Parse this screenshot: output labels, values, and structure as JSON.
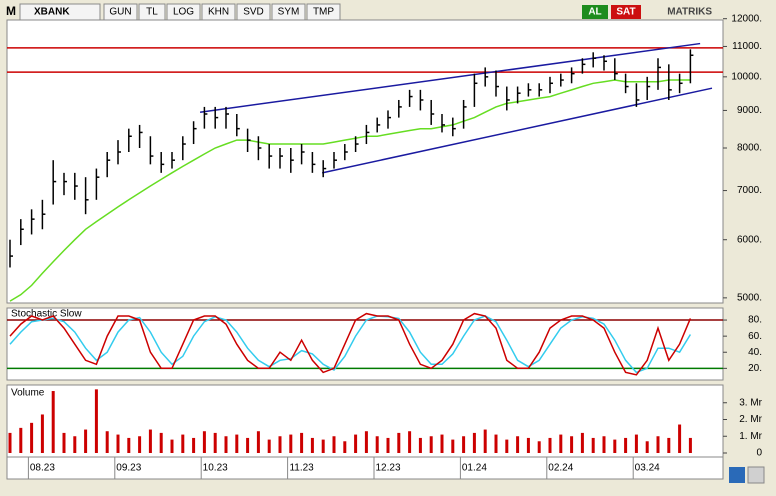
{
  "toolbar": {
    "logo": "M",
    "symbol": "XBANK",
    "buttons": [
      "GUN",
      "TL",
      "LOG",
      "KHN",
      "SVD",
      "SYM",
      "TMP"
    ],
    "buy": "AL",
    "sell": "SAT",
    "brand": "MATRIKS"
  },
  "chart_data": [
    {
      "type": "ohlc",
      "color": "#000000",
      "log_scale": true,
      "categories": [
        null,
        null,
        null,
        "08.23",
        null,
        null,
        null,
        null,
        null,
        null,
        null,
        "09.23",
        null,
        null,
        null,
        null,
        null,
        null,
        null,
        "10.23",
        null,
        null,
        null,
        null,
        null,
        null,
        null,
        "11.23",
        null,
        null,
        null,
        null,
        null,
        null,
        null,
        "12.23",
        null,
        null,
        null,
        null,
        null,
        null,
        null,
        "01.24",
        null,
        null,
        null,
        null,
        null,
        null,
        null,
        "02.24",
        null,
        null,
        null,
        null,
        null,
        null,
        null,
        "03.24",
        null,
        null,
        null,
        null
      ],
      "high": [
        6000,
        6400,
        6600,
        6800,
        7700,
        7400,
        7400,
        7300,
        7500,
        7900,
        8200,
        8500,
        8600,
        8300,
        7900,
        7900,
        8300,
        8700,
        9100,
        9100,
        9100,
        8900,
        8500,
        8300,
        8100,
        8000,
        8000,
        8100,
        7900,
        7700,
        7900,
        8100,
        8300,
        8600,
        8800,
        9000,
        9300,
        9600,
        9600,
        9300,
        8900,
        8800,
        9300,
        10100,
        10300,
        10200,
        9700,
        9700,
        9800,
        9800,
        10000,
        10100,
        10300,
        10600,
        10800,
        10700,
        10600,
        10100,
        9800,
        10000,
        10600,
        10400,
        10100,
        10900
      ],
      "low": [
        5500,
        5900,
        6100,
        6200,
        6700,
        6900,
        6800,
        6500,
        6800,
        7300,
        7600,
        7900,
        8000,
        7600,
        7400,
        7500,
        7700,
        8100,
        8500,
        8500,
        8500,
        8300,
        7900,
        7700,
        7500,
        7500,
        7400,
        7600,
        7400,
        7300,
        7500,
        7700,
        7900,
        8100,
        8400,
        8500,
        8800,
        9100,
        9000,
        8600,
        8400,
        8300,
        8500,
        9100,
        9700,
        9400,
        9000,
        9200,
        9400,
        9400,
        9500,
        9700,
        9800,
        10100,
        10300,
        10200,
        9900,
        9500,
        9100,
        9300,
        9600,
        9300,
        9500,
        9800
      ],
      "close": [
        5700,
        6200,
        6400,
        6500,
        7200,
        7200,
        7100,
        6800,
        7300,
        7700,
        7900,
        8300,
        8400,
        7800,
        7600,
        7700,
        8100,
        8500,
        8900,
        8800,
        8900,
        8500,
        8200,
        8000,
        7800,
        7800,
        7700,
        7900,
        7600,
        7500,
        7700,
        7900,
        8100,
        8400,
        8600,
        8800,
        9100,
        9400,
        9300,
        8900,
        8600,
        8500,
        9100,
        9800,
        10000,
        9700,
        9300,
        9500,
        9600,
        9600,
        9800,
        9900,
        10100,
        10400,
        10600,
        10500,
        10100,
        9700,
        9300,
        9700,
        10300,
        9600,
        9800,
        10700
      ],
      "moving_average": {
        "color": "#66dd22",
        "values": [
          4950,
          5050,
          5200,
          5400,
          5600,
          5800,
          6000,
          6200,
          6350,
          6500,
          6650,
          6800,
          6950,
          7100,
          7250,
          7400,
          7550,
          7700,
          7850,
          8000,
          8100,
          8200,
          8200,
          8150,
          8100,
          8100,
          8100,
          8100,
          8100,
          8100,
          8150,
          8200,
          8250,
          8300,
          8300,
          8350,
          8400,
          8450,
          8500,
          8500,
          8550,
          8600,
          8700,
          8800,
          8950,
          9100,
          9200,
          9250,
          9300,
          9350,
          9400,
          9500,
          9600,
          9700,
          9800,
          9850,
          9900,
          9850,
          9850,
          9850,
          9850,
          9900,
          9900,
          9900
        ]
      },
      "trendlines": [
        {
          "color": "#1a1aa0",
          "from": [
            17.6,
            8950
          ],
          "to": [
            63.9,
            11100
          ]
        },
        {
          "color": "#1a1aa0",
          "from": [
            28.9,
            7400
          ],
          "to": [
            65,
            9650
          ]
        }
      ],
      "hlines": [
        {
          "value": 10950,
          "color": "#cc0000"
        },
        {
          "value": 10150,
          "color": "#cc0000"
        }
      ],
      "ylim": [
        4920,
        12140
      ],
      "yticks": [
        {
          "value": 5000,
          "label": "5000."
        },
        {
          "value": 6000,
          "label": "6000."
        },
        {
          "value": 7000,
          "label": "7000."
        },
        {
          "value": 8000,
          "label": "8000."
        },
        {
          "value": 9000,
          "label": "9000."
        },
        {
          "value": 10000,
          "label": "10000."
        },
        {
          "value": 11000,
          "label": "11000."
        },
        {
          "value": 12000,
          "label": "12000."
        }
      ]
    },
    {
      "type": "line",
      "title": "Stochastic Slow",
      "series": [
        {
          "color": "#cc0000",
          "values": [
            60,
            75,
            85,
            80,
            85,
            70,
            50,
            30,
            25,
            60,
            85,
            85,
            80,
            40,
            20,
            20,
            50,
            80,
            85,
            85,
            75,
            50,
            30,
            20,
            20,
            40,
            30,
            55,
            30,
            15,
            20,
            50,
            80,
            88,
            85,
            85,
            80,
            50,
            25,
            20,
            30,
            50,
            80,
            88,
            85,
            70,
            30,
            20,
            20,
            40,
            70,
            80,
            85,
            85,
            80,
            70,
            40,
            15,
            12,
            30,
            70,
            30,
            50,
            82
          ]
        },
        {
          "color": "#33ccee",
          "values": [
            50,
            65,
            78,
            80,
            82,
            78,
            65,
            45,
            30,
            40,
            65,
            80,
            83,
            65,
            40,
            25,
            35,
            60,
            78,
            84,
            80,
            65,
            45,
            30,
            22,
            30,
            32,
            42,
            38,
            25,
            18,
            35,
            60,
            80,
            85,
            84,
            82,
            65,
            40,
            25,
            25,
            38,
            60,
            80,
            85,
            78,
            55,
            30,
            22,
            30,
            50,
            70,
            80,
            84,
            82,
            75,
            55,
            30,
            15,
            20,
            45,
            45,
            40,
            62
          ]
        }
      ],
      "levels": [
        {
          "value": 80,
          "color": "#8b0000"
        },
        {
          "value": 20,
          "color": "#007a00"
        }
      ],
      "ylim": [
        8,
        90
      ],
      "yticks": [
        {
          "value": 20,
          "label": "20."
        },
        {
          "value": 40,
          "label": "40."
        },
        {
          "value": 60,
          "label": "60."
        },
        {
          "value": 80,
          "label": "80."
        }
      ]
    },
    {
      "type": "bar",
      "title": "Volume",
      "color": "#cc0000",
      "values": [
        1.2,
        1.5,
        1.8,
        2.3,
        3.7,
        1.2,
        1.0,
        1.4,
        3.8,
        1.3,
        1.1,
        0.9,
        1.0,
        1.4,
        1.2,
        0.8,
        1.1,
        0.9,
        1.3,
        1.2,
        1.0,
        1.1,
        0.9,
        1.3,
        0.8,
        1.0,
        1.1,
        1.2,
        0.9,
        0.8,
        1.0,
        0.7,
        1.1,
        1.3,
        1.0,
        0.9,
        1.2,
        1.3,
        0.9,
        1.0,
        1.1,
        0.8,
        1.0,
        1.2,
        1.4,
        1.1,
        0.8,
        1.0,
        0.9,
        0.7,
        0.9,
        1.1,
        1.0,
        1.2,
        0.9,
        1.0,
        0.8,
        0.9,
        1.1,
        0.7,
        1.0,
        0.9,
        1.7,
        0.9
      ],
      "ylim": [
        0,
        4
      ],
      "yticks": [
        0,
        {
          "value": 1,
          "label": "1. Mr"
        },
        {
          "value": 2,
          "label": "2. Mr"
        },
        {
          "value": 3,
          "label": "3. Mr"
        }
      ]
    }
  ]
}
